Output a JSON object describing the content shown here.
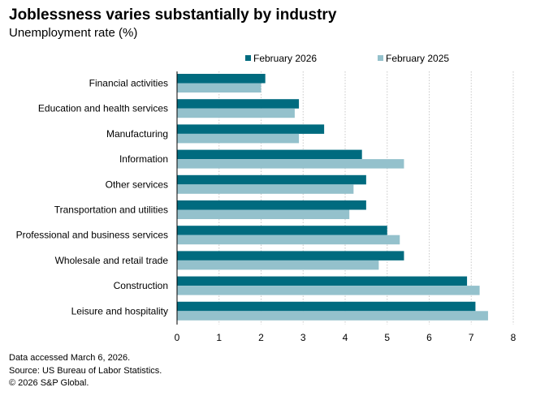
{
  "header": {
    "title": "Joblessness varies substantially by industry",
    "subtitle": "Unemployment rate (%)"
  },
  "footer": {
    "notes": [
      "Data accessed March 6, 2026.",
      "Source: US Bureau of Labor Statistics.",
      "© 2026 S&P Global."
    ]
  },
  "chart_data": {
    "type": "bar",
    "orientation": "horizontal",
    "categories": [
      "Financial activities",
      "Education and health services",
      "Manufacturing",
      "Information",
      "Other services",
      "Transportation and utilities",
      "Professional and business services",
      "Wholesale and retail trade",
      "Construction",
      "Leisure and hospitality"
    ],
    "series": [
      {
        "name": "February 2026",
        "color": "#006b7f",
        "values": [
          2.1,
          2.9,
          3.5,
          4.4,
          4.5,
          4.5,
          5.0,
          5.4,
          6.9,
          7.1
        ]
      },
      {
        "name": "February 2025",
        "color": "#94c1cc",
        "values": [
          2.0,
          2.8,
          2.9,
          5.4,
          4.2,
          4.1,
          5.3,
          4.8,
          7.2,
          7.4
        ]
      }
    ],
    "xlim": [
      0,
      8
    ],
    "xticks": [
      0,
      1,
      2,
      3,
      4,
      5,
      6,
      7,
      8
    ],
    "grid": true,
    "legend": "top"
  }
}
